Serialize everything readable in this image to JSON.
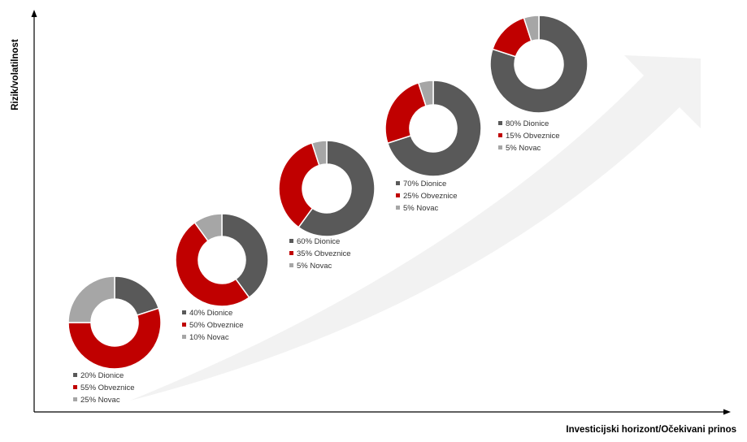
{
  "axes": {
    "y_title": "Rizik/volatilnost",
    "x_title": "Investicijski horizont/Očekivani prinos"
  },
  "colors": {
    "dionice": "#595959",
    "obveznice": "#c00000",
    "novac": "#a6a6a6",
    "arrow": "#f2f2f2",
    "axis": "#000000"
  },
  "chart_data": [
    {
      "type": "pie",
      "categories": [
        "Dionice",
        "Obveznice",
        "Novac"
      ],
      "values": [
        20,
        55,
        25
      ],
      "legend": [
        "20% Dionice",
        "55% Obveznice",
        "25% Novac"
      ]
    },
    {
      "type": "pie",
      "categories": [
        "Dionice",
        "Obveznice",
        "Novac"
      ],
      "values": [
        40,
        50,
        10
      ],
      "legend": [
        "40% Dionice",
        "50% Obveznice",
        "10% Novac"
      ]
    },
    {
      "type": "pie",
      "categories": [
        "Dionice",
        "Obveznice",
        "Novac"
      ],
      "values": [
        60,
        35,
        5
      ],
      "legend": [
        "60% Dionice",
        "35% Obveznice",
        "5% Novac"
      ]
    },
    {
      "type": "pie",
      "categories": [
        "Dionice",
        "Obveznice",
        "Novac"
      ],
      "values": [
        70,
        25,
        5
      ],
      "legend": [
        "70% Dionice",
        "25% Obveznice",
        "5% Novac"
      ]
    },
    {
      "type": "pie",
      "categories": [
        "Dionice",
        "Obveznice",
        "Novac"
      ],
      "values": [
        80,
        15,
        5
      ],
      "legend": [
        "80% Dionice",
        "15% Obveznice",
        "5% Novac"
      ]
    }
  ]
}
